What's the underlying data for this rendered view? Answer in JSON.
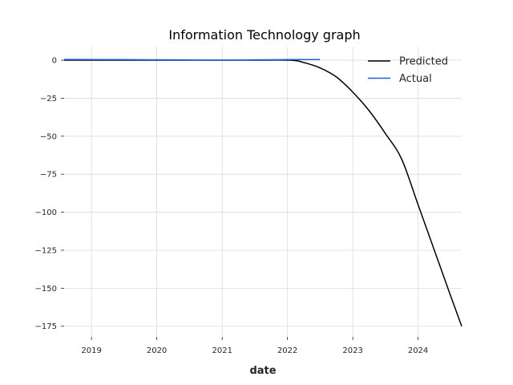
{
  "chart_data": {
    "type": "line",
    "title": "Information Technology graph",
    "xlabel": "date",
    "ylabel": "",
    "x_axis_type": "date",
    "xlim": [
      "2018-08-01",
      "2024-09-01"
    ],
    "ylim": [
      -182,
      9
    ],
    "x_ticks": [
      "2019",
      "2020",
      "2021",
      "2022",
      "2023",
      "2024"
    ],
    "y_ticks": [
      0,
      -25,
      -50,
      -75,
      -100,
      -125,
      -150,
      -175
    ],
    "y_tick_labels": [
      "0",
      "−25",
      "−50",
      "−75",
      "−100",
      "−125",
      "−150",
      "−175"
    ],
    "grid": true,
    "legend_position": "top-right",
    "series": [
      {
        "name": "Predicted",
        "color": "#000000",
        "points": [
          {
            "x": "2018-08-01",
            "y": 0
          },
          {
            "x": "2019-06-01",
            "y": 0
          },
          {
            "x": "2020-06-01",
            "y": 0
          },
          {
            "x": "2021-06-01",
            "y": 0
          },
          {
            "x": "2022-01-15",
            "y": 0
          },
          {
            "x": "2022-04-01",
            "y": -1.5
          },
          {
            "x": "2022-07-01",
            "y": -5
          },
          {
            "x": "2022-10-01",
            "y": -11
          },
          {
            "x": "2023-01-01",
            "y": -21
          },
          {
            "x": "2023-04-01",
            "y": -33
          },
          {
            "x": "2023-07-01",
            "y": -48
          },
          {
            "x": "2023-10-01",
            "y": -65
          },
          {
            "x": "2024-01-01",
            "y": -95
          },
          {
            "x": "2024-04-01",
            "y": -125
          },
          {
            "x": "2024-07-01",
            "y": -155
          },
          {
            "x": "2024-09-01",
            "y": -175
          }
        ]
      },
      {
        "name": "Actual",
        "color": "#1f5fe0",
        "points": [
          {
            "x": "2018-08-01",
            "y": 0.5
          },
          {
            "x": "2019-06-01",
            "y": 0.4
          },
          {
            "x": "2020-06-01",
            "y": 0.2
          },
          {
            "x": "2021-01-01",
            "y": 0.0
          },
          {
            "x": "2021-06-01",
            "y": 0.2
          },
          {
            "x": "2022-01-01",
            "y": 0.4
          },
          {
            "x": "2022-07-01",
            "y": 0.4
          }
        ]
      }
    ]
  }
}
